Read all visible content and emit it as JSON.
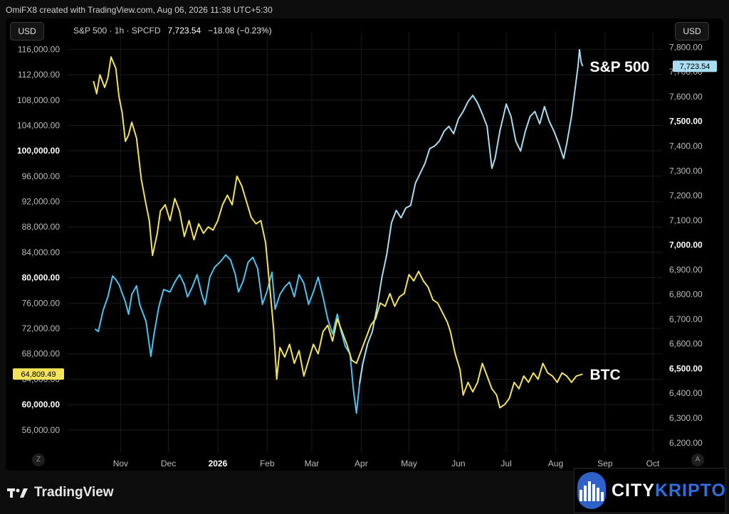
{
  "header": {
    "credit": "OmiFX8 created with TradingView.com, Aug 06, 2026 11:38 UTC+5:30"
  },
  "toolbar": {
    "currency_left": "USD",
    "currency_right": "USD",
    "symbol": "S&P 500 · 1h · SPCFD",
    "last": "7,723.54",
    "change": "−18.08 (−0.23%)"
  },
  "bottom": {
    "left_btn": "Z",
    "right_btn": "A"
  },
  "footer": {
    "brand": "TradingView",
    "sponsor_a": "CITY",
    "sponsor_b": "KRIPTO"
  },
  "chart_data": {
    "type": "line",
    "x_ticks": [
      "Nov",
      "Dec",
      "2026",
      "Feb",
      "Mar",
      "Apr",
      "May",
      "Jun",
      "Jul",
      "Aug",
      "Sep",
      "Oct"
    ],
    "left_axis": {
      "ticks": [
        "116,000.00",
        "112,000.00",
        "108,000.00",
        "104,000.00",
        "100,000.00",
        "96,000.00",
        "92,000.00",
        "88,000.00",
        "84,000.00",
        "80,000.00",
        "76,000.00",
        "72,000.00",
        "68,000.00",
        "64,000.00",
        "60,000.00",
        "56,000.00"
      ],
      "bold_ticks": [
        "100,000.00",
        "80,000.00",
        "60,000.00"
      ],
      "range": [
        52500,
        117500
      ],
      "last_label": "64,809.49"
    },
    "right_axis": {
      "ticks": [
        "7,800.00",
        "7,700.00",
        "7,600.00",
        "7,500.00",
        "7,400.00",
        "7,300.00",
        "7,200.00",
        "7,100.00",
        "7,000.00",
        "6,900.00",
        "6,800.00",
        "6,700.00",
        "6,600.00",
        "6,500.00",
        "6,400.00",
        "6,300.00",
        "6,200.00"
      ],
      "bold_ticks": [
        "7,500.00",
        "7,000.00",
        "6,500.00"
      ],
      "range": [
        6162,
        7830
      ],
      "last_label": "7,723.54"
    },
    "series": [
      {
        "name": "S&P 500",
        "axis": "right",
        "color": "#a8dcf0",
        "color_early": "#4fc3f0",
        "points": [
          [
            "2025-10-16",
            6660
          ],
          [
            "2025-10-18",
            6650
          ],
          [
            "2025-10-21",
            6735
          ],
          [
            "2025-10-24",
            6790
          ],
          [
            "2025-10-27",
            6875
          ],
          [
            "2025-10-29",
            6860
          ],
          [
            "2025-10-31",
            6840
          ],
          [
            "2025-11-04",
            6770
          ],
          [
            "2025-11-06",
            6720
          ],
          [
            "2025-11-08",
            6800
          ],
          [
            "2025-11-11",
            6835
          ],
          [
            "2025-11-13",
            6760
          ],
          [
            "2025-11-17",
            6690
          ],
          [
            "2025-11-20",
            6550
          ],
          [
            "2025-11-22",
            6640
          ],
          [
            "2025-11-25",
            6750
          ],
          [
            "2025-11-28",
            6820
          ],
          [
            "2025-12-02",
            6810
          ],
          [
            "2025-12-05",
            6850
          ],
          [
            "2025-12-08",
            6880
          ],
          [
            "2025-12-11",
            6840
          ],
          [
            "2025-12-13",
            6790
          ],
          [
            "2025-12-16",
            6830
          ],
          [
            "2025-12-19",
            6880
          ],
          [
            "2025-12-22",
            6800
          ],
          [
            "2025-12-24",
            6760
          ],
          [
            "2025-12-27",
            6870
          ],
          [
            "2025-12-30",
            6910
          ],
          [
            "2026-01-03",
            6935
          ],
          [
            "2026-01-06",
            6960
          ],
          [
            "2026-01-09",
            6940
          ],
          [
            "2026-01-12",
            6880
          ],
          [
            "2026-01-14",
            6810
          ],
          [
            "2026-01-17",
            6855
          ],
          [
            "2026-01-20",
            6930
          ],
          [
            "2026-01-23",
            6950
          ],
          [
            "2026-01-26",
            6905
          ],
          [
            "2026-01-29",
            6760
          ],
          [
            "2026-02-01",
            6815
          ],
          [
            "2026-02-04",
            6890
          ],
          [
            "2026-02-06",
            6740
          ],
          [
            "2026-02-09",
            6800
          ],
          [
            "2026-02-12",
            6830
          ],
          [
            "2026-02-15",
            6850
          ],
          [
            "2026-02-18",
            6790
          ],
          [
            "2026-02-21",
            6880
          ],
          [
            "2026-02-24",
            6845
          ],
          [
            "2026-02-27",
            6760
          ],
          [
            "2026-03-02",
            6810
          ],
          [
            "2026-03-05",
            6870
          ],
          [
            "2026-03-08",
            6790
          ],
          [
            "2026-03-11",
            6700
          ],
          [
            "2026-03-14",
            6640
          ],
          [
            "2026-03-17",
            6720
          ],
          [
            "2026-03-19",
            6660
          ],
          [
            "2026-03-22",
            6590
          ],
          [
            "2026-03-25",
            6560
          ],
          [
            "2026-03-27",
            6420
          ],
          [
            "2026-03-29",
            6320
          ],
          [
            "2026-03-31",
            6440
          ],
          [
            "2026-04-02",
            6520
          ],
          [
            "2026-04-05",
            6600
          ],
          [
            "2026-04-08",
            6650
          ],
          [
            "2026-04-11",
            6750
          ],
          [
            "2026-04-14",
            6870
          ],
          [
            "2026-04-17",
            6960
          ],
          [
            "2026-04-20",
            7090
          ],
          [
            "2026-04-23",
            7140
          ],
          [
            "2026-04-26",
            7110
          ],
          [
            "2026-04-29",
            7150
          ],
          [
            "2026-05-02",
            7160
          ],
          [
            "2026-05-05",
            7250
          ],
          [
            "2026-05-08",
            7290
          ],
          [
            "2026-05-11",
            7330
          ],
          [
            "2026-05-14",
            7390
          ],
          [
            "2026-05-17",
            7400
          ],
          [
            "2026-05-20",
            7420
          ],
          [
            "2026-05-23",
            7460
          ],
          [
            "2026-05-26",
            7480
          ],
          [
            "2026-05-29",
            7450
          ],
          [
            "2026-06-01",
            7510
          ],
          [
            "2026-06-04",
            7540
          ],
          [
            "2026-06-07",
            7580
          ],
          [
            "2026-06-10",
            7605
          ],
          [
            "2026-06-13",
            7575
          ],
          [
            "2026-06-16",
            7530
          ],
          [
            "2026-06-19",
            7480
          ],
          [
            "2026-06-22",
            7310
          ],
          [
            "2026-06-24",
            7350
          ],
          [
            "2026-06-27",
            7460
          ],
          [
            "2026-07-01",
            7570
          ],
          [
            "2026-07-04",
            7520
          ],
          [
            "2026-07-07",
            7420
          ],
          [
            "2026-07-10",
            7380
          ],
          [
            "2026-07-13",
            7460
          ],
          [
            "2026-07-16",
            7520
          ],
          [
            "2026-07-19",
            7540
          ],
          [
            "2026-07-22",
            7490
          ],
          [
            "2026-07-25",
            7560
          ],
          [
            "2026-07-28",
            7500
          ],
          [
            "2026-07-31",
            7460
          ],
          [
            "2026-08-03",
            7410
          ],
          [
            "2026-08-06",
            7350
          ],
          [
            "2026-08-08",
            7410
          ],
          [
            "2026-08-11",
            7520
          ],
          [
            "2026-08-13",
            7620
          ],
          [
            "2026-08-15",
            7720
          ],
          [
            "2026-08-16",
            7790
          ],
          [
            "2026-08-17",
            7740
          ],
          [
            "2026-08-18",
            7723
          ]
        ]
      },
      {
        "name": "BTC",
        "axis": "left",
        "color": "#f2e35a",
        "points": [
          [
            "2025-10-15",
            111000
          ],
          [
            "2025-10-17",
            109000
          ],
          [
            "2025-10-19",
            112000
          ],
          [
            "2025-10-22",
            110000
          ],
          [
            "2025-10-24",
            111500
          ],
          [
            "2025-10-26",
            114800
          ],
          [
            "2025-10-29",
            113000
          ],
          [
            "2025-10-31",
            108500
          ],
          [
            "2025-11-02",
            106000
          ],
          [
            "2025-11-04",
            101500
          ],
          [
            "2025-11-06",
            102500
          ],
          [
            "2025-11-08",
            104500
          ],
          [
            "2025-11-11",
            102000
          ],
          [
            "2025-11-14",
            95500
          ],
          [
            "2025-11-17",
            91500
          ],
          [
            "2025-11-19",
            89000
          ],
          [
            "2025-11-21",
            83500
          ],
          [
            "2025-11-24",
            87000
          ],
          [
            "2025-11-26",
            90500
          ],
          [
            "2025-11-29",
            91500
          ],
          [
            "2025-12-02",
            89000
          ],
          [
            "2025-12-05",
            92500
          ],
          [
            "2025-12-08",
            90500
          ],
          [
            "2025-12-11",
            86500
          ],
          [
            "2025-12-14",
            89000
          ],
          [
            "2025-12-17",
            86000
          ],
          [
            "2025-12-20",
            88500
          ],
          [
            "2025-12-23",
            87000
          ],
          [
            "2025-12-26",
            88000
          ],
          [
            "2025-12-29",
            87500
          ],
          [
            "2026-01-01",
            89000
          ],
          [
            "2026-01-04",
            91500
          ],
          [
            "2026-01-07",
            93000
          ],
          [
            "2026-01-10",
            91500
          ],
          [
            "2026-01-13",
            96000
          ],
          [
            "2026-01-16",
            94500
          ],
          [
            "2026-01-19",
            92000
          ],
          [
            "2026-01-22",
            89500
          ],
          [
            "2026-01-25",
            88500
          ],
          [
            "2026-01-28",
            89000
          ],
          [
            "2026-01-31",
            85500
          ],
          [
            "2026-02-03",
            77500
          ],
          [
            "2026-02-05",
            72000
          ],
          [
            "2026-02-07",
            64000
          ],
          [
            "2026-02-09",
            69000
          ],
          [
            "2026-02-12",
            67500
          ],
          [
            "2026-02-15",
            69500
          ],
          [
            "2026-02-18",
            66500
          ],
          [
            "2026-02-21",
            68500
          ],
          [
            "2026-02-24",
            64500
          ],
          [
            "2026-02-27",
            67000
          ],
          [
            "2026-03-02",
            69500
          ],
          [
            "2026-03-05",
            68000
          ],
          [
            "2026-03-08",
            71500
          ],
          [
            "2026-03-11",
            72500
          ],
          [
            "2026-03-14",
            70000
          ],
          [
            "2026-03-17",
            73500
          ],
          [
            "2026-03-20",
            71500
          ],
          [
            "2026-03-23",
            69500
          ],
          [
            "2026-03-26",
            67000
          ],
          [
            "2026-03-29",
            66500
          ],
          [
            "2026-04-01",
            68500
          ],
          [
            "2026-04-04",
            70500
          ],
          [
            "2026-04-07",
            72500
          ],
          [
            "2026-04-10",
            73500
          ],
          [
            "2026-04-13",
            76000
          ],
          [
            "2026-04-16",
            75500
          ],
          [
            "2026-04-19",
            77500
          ],
          [
            "2026-04-22",
            75500
          ],
          [
            "2026-04-25",
            77000
          ],
          [
            "2026-04-28",
            77500
          ],
          [
            "2026-05-01",
            80500
          ],
          [
            "2026-05-04",
            79500
          ],
          [
            "2026-05-07",
            81000
          ],
          [
            "2026-05-10",
            79500
          ],
          [
            "2026-05-13",
            78500
          ],
          [
            "2026-05-16",
            76500
          ],
          [
            "2026-05-19",
            76000
          ],
          [
            "2026-05-22",
            74500
          ],
          [
            "2026-05-25",
            73000
          ],
          [
            "2026-05-27",
            71500
          ],
          [
            "2026-05-30",
            68000
          ],
          [
            "2026-06-02",
            65500
          ],
          [
            "2026-06-04",
            61500
          ],
          [
            "2026-06-07",
            63500
          ],
          [
            "2026-06-10",
            62000
          ],
          [
            "2026-06-13",
            63500
          ],
          [
            "2026-06-16",
            66500
          ],
          [
            "2026-06-19",
            64500
          ],
          [
            "2026-06-22",
            62500
          ],
          [
            "2026-06-25",
            61500
          ],
          [
            "2026-06-27",
            59500
          ],
          [
            "2026-06-30",
            60000
          ],
          [
            "2026-07-03",
            61000
          ],
          [
            "2026-07-06",
            63500
          ],
          [
            "2026-07-09",
            62500
          ],
          [
            "2026-07-12",
            64500
          ],
          [
            "2026-07-15",
            63500
          ],
          [
            "2026-07-18",
            65000
          ],
          [
            "2026-07-21",
            64000
          ],
          [
            "2026-07-24",
            66500
          ],
          [
            "2026-07-27",
            65000
          ],
          [
            "2026-07-30",
            64500
          ],
          [
            "2026-08-02",
            63500
          ],
          [
            "2026-08-05",
            65000
          ],
          [
            "2026-08-08",
            64500
          ],
          [
            "2026-08-11",
            63500
          ],
          [
            "2026-08-14",
            64500
          ],
          [
            "2026-08-18",
            64809
          ]
        ]
      }
    ]
  }
}
